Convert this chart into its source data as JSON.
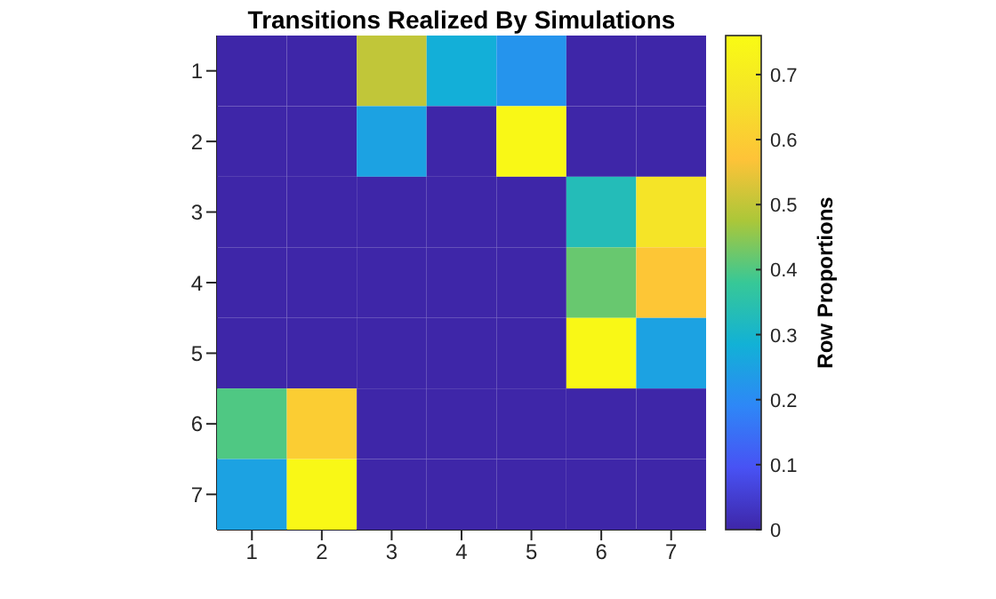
{
  "chart_data": {
    "type": "heatmap",
    "title": "Transitions Realized By Simulations",
    "clabel": "Row Proportions",
    "categories": [
      "1",
      "2",
      "3",
      "4",
      "5",
      "6",
      "7"
    ],
    "y_categories": [
      "1",
      "2",
      "3",
      "4",
      "5",
      "6",
      "7"
    ],
    "cells": [
      [
        0,
        0,
        0.5,
        0.28,
        0.22,
        0,
        0
      ],
      [
        0,
        0,
        0.25,
        0,
        0.75,
        0,
        0
      ],
      [
        0,
        0,
        0,
        0,
        0,
        0.33,
        0.67
      ],
      [
        0,
        0,
        0,
        0,
        0,
        0.42,
        0.58
      ],
      [
        0,
        0,
        0,
        0,
        0,
        0.75,
        0.25
      ],
      [
        0.4,
        0.6,
        0,
        0,
        0,
        0,
        0
      ],
      [
        0.25,
        0.75,
        0,
        0,
        0,
        0,
        0
      ]
    ],
    "clim": [
      0,
      0.76
    ],
    "cticks": [
      0,
      0.1,
      0.2,
      0.3,
      0.4,
      0.5,
      0.6,
      0.7
    ]
  }
}
